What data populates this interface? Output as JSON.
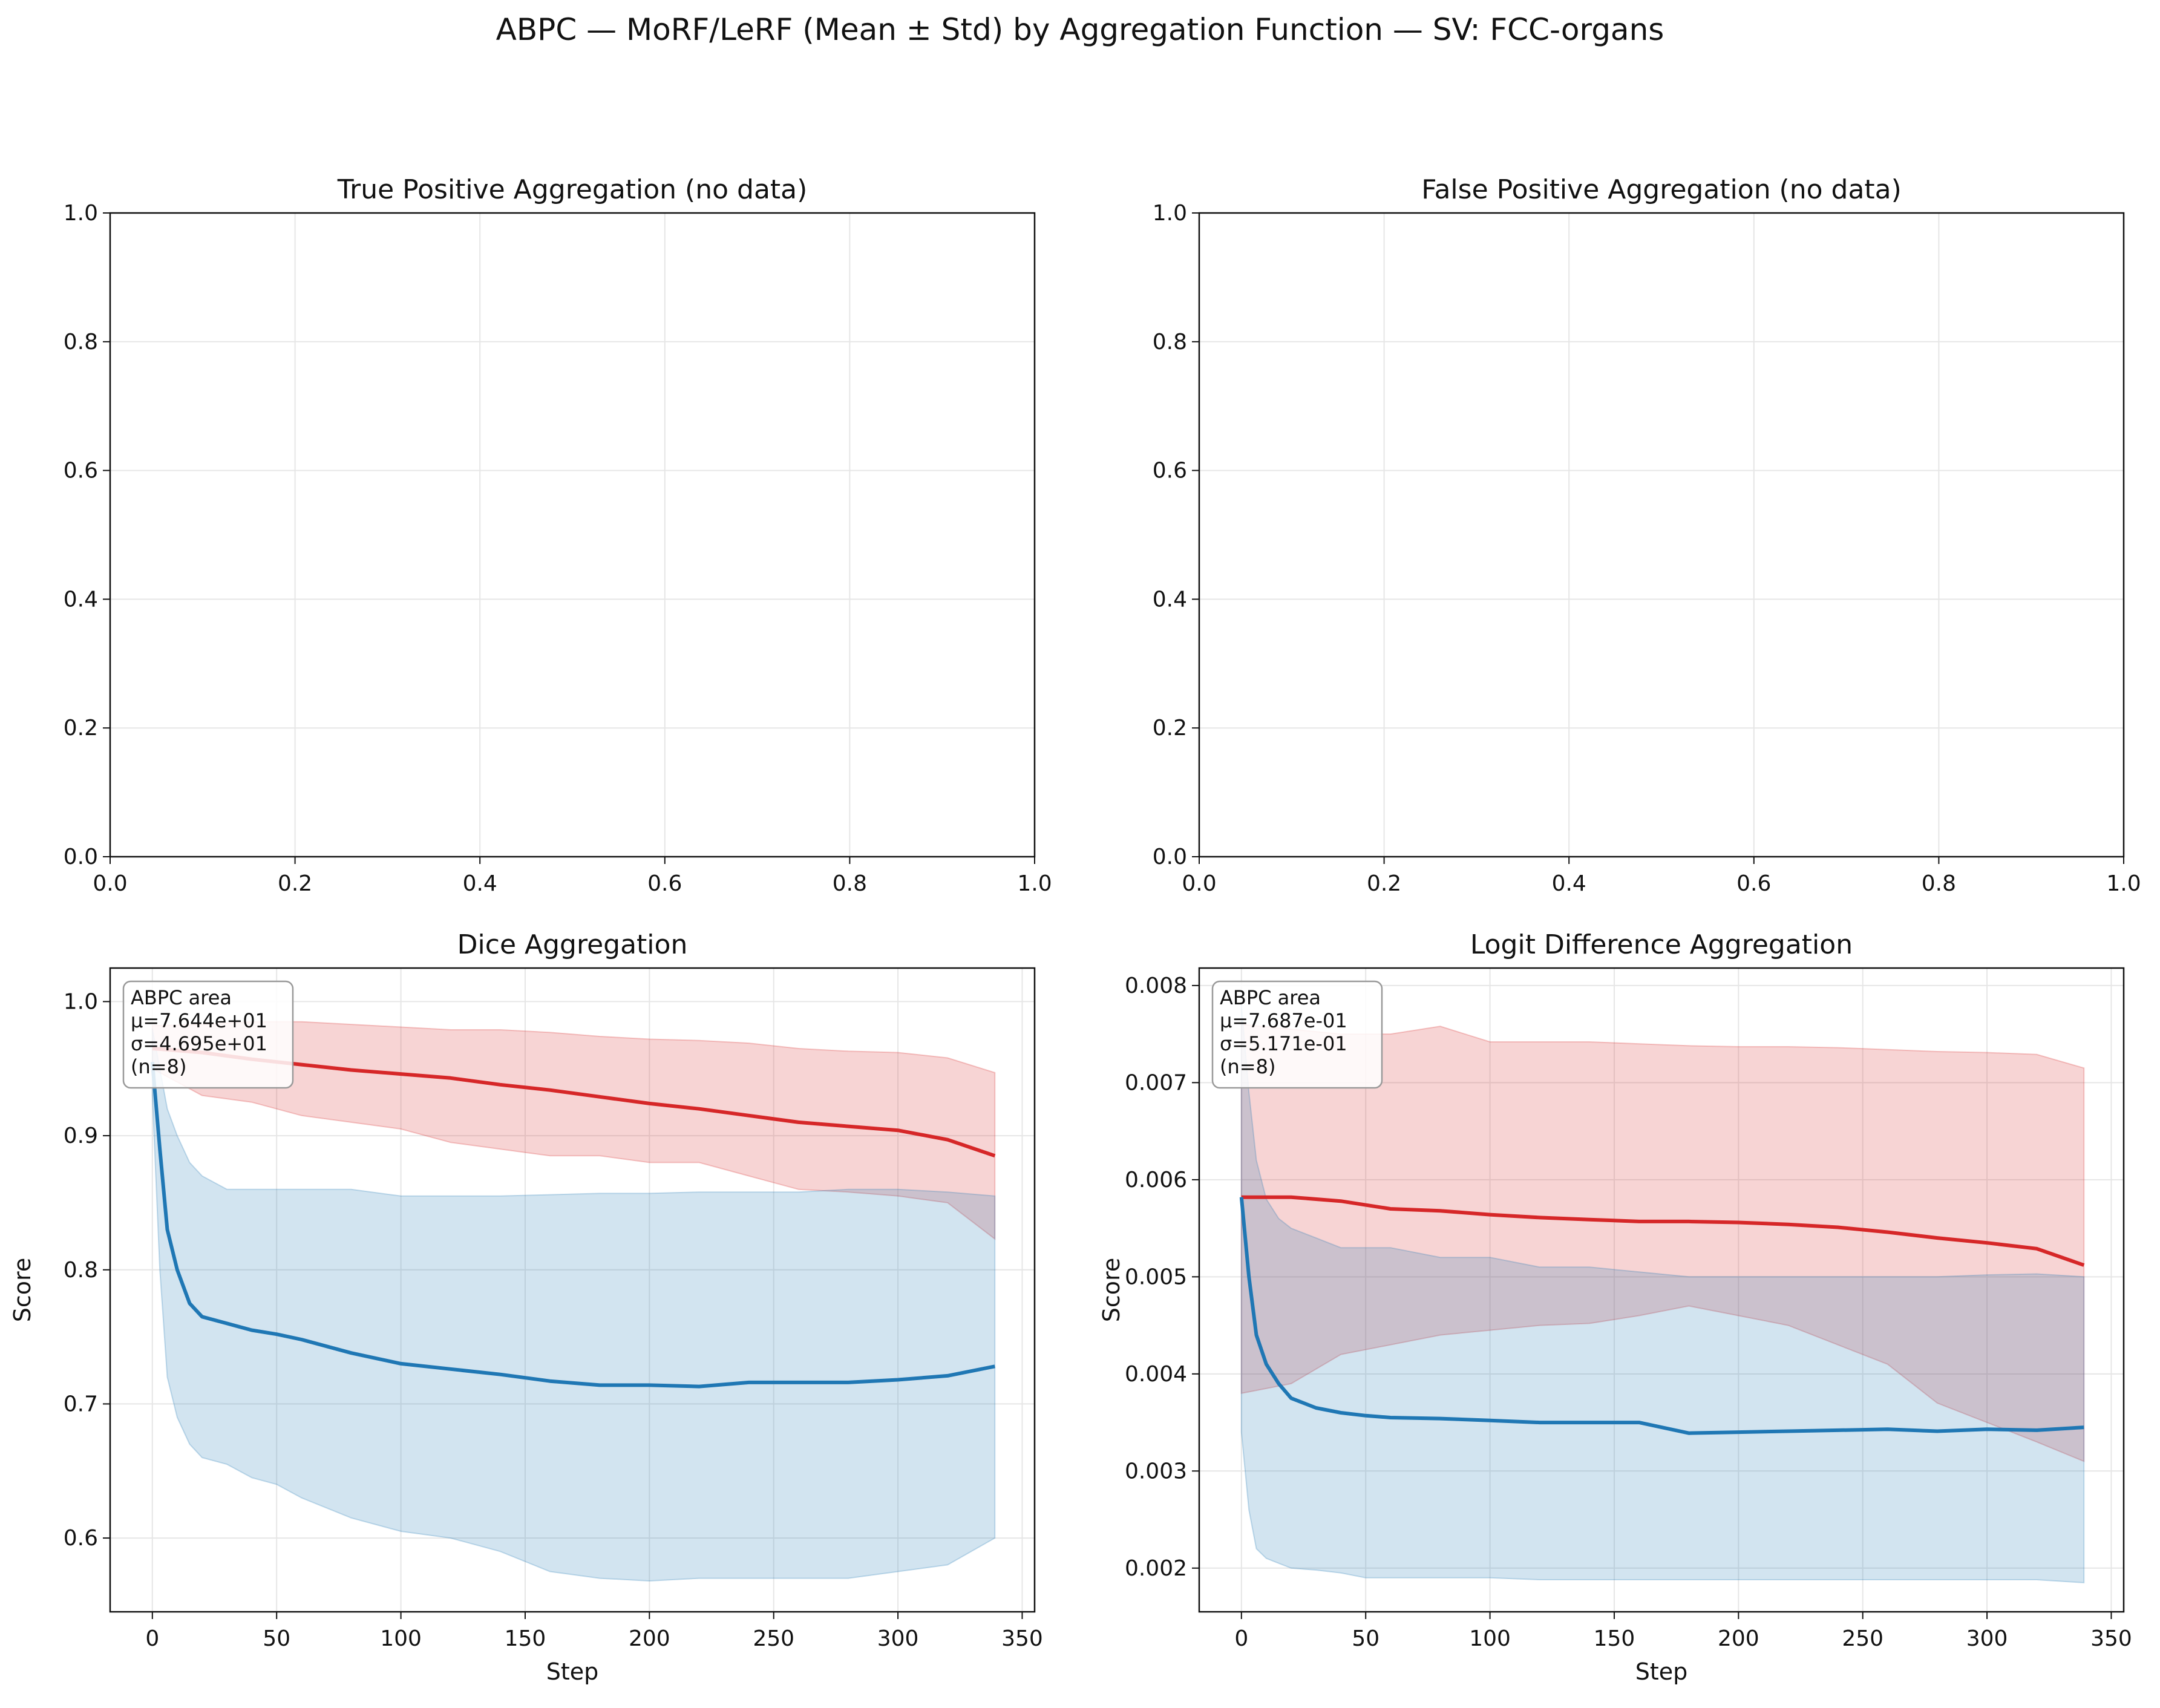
{
  "figure": {
    "title": "ABPC — MoRF/LeRF (Mean ± Std) by Aggregation Function — SV: FCC-organs"
  },
  "colors": {
    "morf": "#1f77b4",
    "lerf": "#d62728",
    "grid": "#e6e6e6"
  },
  "chart_data": [
    {
      "type": "line",
      "title": "True Positive Aggregation (no data)",
      "xlabel": "",
      "ylabel": "",
      "xlim": [
        0,
        1
      ],
      "ylim": [
        0,
        1
      ],
      "xticks": [
        "0.0",
        "0.2",
        "0.4",
        "0.6",
        "0.8",
        "1.0"
      ],
      "yticks": [
        "0.0",
        "0.2",
        "0.4",
        "0.6",
        "0.8",
        "1.0"
      ],
      "grid": true,
      "series": []
    },
    {
      "type": "line",
      "title": "False Positive Aggregation (no data)",
      "xlabel": "",
      "ylabel": "",
      "xlim": [
        0,
        1
      ],
      "ylim": [
        0,
        1
      ],
      "xticks": [
        "0.0",
        "0.2",
        "0.4",
        "0.6",
        "0.8",
        "1.0"
      ],
      "yticks": [
        "0.0",
        "0.2",
        "0.4",
        "0.6",
        "0.8",
        "1.0"
      ],
      "grid": true,
      "series": []
    },
    {
      "type": "area",
      "title": "Dice Aggregation",
      "xlabel": "Step",
      "ylabel": "Score",
      "xlim": [
        -17,
        355
      ],
      "ylim": [
        0.545,
        1.025
      ],
      "xticks": [
        "0",
        "50",
        "100",
        "150",
        "200",
        "250",
        "300",
        "350"
      ],
      "yticks": [
        "0.6",
        "0.7",
        "0.8",
        "0.9",
        "1.0"
      ],
      "grid": true,
      "annotation": [
        "ABPC area",
        "μ=7.644e+01",
        "σ=4.695e+01",
        "(n=8)"
      ],
      "series": [
        {
          "color": "#d62728",
          "x": [
            0,
            20,
            40,
            60,
            80,
            100,
            120,
            140,
            160,
            180,
            200,
            220,
            240,
            260,
            280,
            300,
            320,
            339
          ],
          "mean": [
            0.965,
            0.962,
            0.957,
            0.953,
            0.949,
            0.946,
            0.943,
            0.938,
            0.934,
            0.929,
            0.924,
            0.92,
            0.915,
            0.91,
            0.907,
            0.904,
            0.897,
            0.885
          ],
          "upper": [
            0.982,
            0.983,
            0.985,
            0.985,
            0.983,
            0.981,
            0.979,
            0.979,
            0.977,
            0.974,
            0.972,
            0.971,
            0.969,
            0.965,
            0.963,
            0.962,
            0.958,
            0.947
          ],
          "lower": [
            0.95,
            0.93,
            0.925,
            0.915,
            0.91,
            0.905,
            0.895,
            0.89,
            0.885,
            0.885,
            0.88,
            0.88,
            0.87,
            0.86,
            0.858,
            0.855,
            0.85,
            0.823
          ]
        },
        {
          "color": "#1f77b4",
          "x": [
            0,
            3,
            6,
            10,
            15,
            20,
            30,
            40,
            50,
            60,
            80,
            100,
            120,
            140,
            160,
            180,
            200,
            220,
            240,
            260,
            280,
            300,
            320,
            339
          ],
          "mean": [
            0.955,
            0.89,
            0.83,
            0.8,
            0.775,
            0.765,
            0.76,
            0.755,
            0.752,
            0.748,
            0.738,
            0.73,
            0.726,
            0.722,
            0.717,
            0.714,
            0.714,
            0.713,
            0.716,
            0.716,
            0.716,
            0.718,
            0.721,
            0.728
          ],
          "upper": [
            0.98,
            0.95,
            0.92,
            0.9,
            0.88,
            0.87,
            0.86,
            0.86,
            0.86,
            0.86,
            0.86,
            0.855,
            0.855,
            0.855,
            0.856,
            0.857,
            0.857,
            0.858,
            0.858,
            0.858,
            0.86,
            0.86,
            0.858,
            0.855
          ],
          "lower": [
            0.93,
            0.8,
            0.72,
            0.69,
            0.67,
            0.66,
            0.655,
            0.645,
            0.64,
            0.63,
            0.615,
            0.605,
            0.6,
            0.59,
            0.575,
            0.57,
            0.568,
            0.57,
            0.57,
            0.57,
            0.57,
            0.575,
            0.58,
            0.6
          ]
        }
      ]
    },
    {
      "type": "area",
      "title": "Logit Difference Aggregation",
      "xlabel": "Step",
      "ylabel": "Score",
      "xlim": [
        -17,
        355
      ],
      "ylim": [
        0.00155,
        0.00818
      ],
      "xticks": [
        "0",
        "50",
        "100",
        "150",
        "200",
        "250",
        "300",
        "350"
      ],
      "yticks": [
        "0.002",
        "0.003",
        "0.004",
        "0.005",
        "0.006",
        "0.007",
        "0.008"
      ],
      "grid": true,
      "annotation": [
        "ABPC area",
        "μ=7.687e-01",
        "σ=5.171e-01",
        "(n=8)"
      ],
      "series": [
        {
          "color": "#d62728",
          "x": [
            0,
            20,
            40,
            60,
            80,
            100,
            120,
            140,
            160,
            180,
            200,
            220,
            240,
            260,
            280,
            300,
            320,
            339
          ],
          "mean": [
            0.00582,
            0.00582,
            0.00578,
            0.0057,
            0.00568,
            0.00564,
            0.00561,
            0.00559,
            0.00557,
            0.00557,
            0.00556,
            0.00554,
            0.00551,
            0.00546,
            0.0054,
            0.00535,
            0.00529,
            0.00512
          ],
          "upper": [
            0.0076,
            0.00755,
            0.0075,
            0.0075,
            0.00758,
            0.00742,
            0.00742,
            0.00742,
            0.0074,
            0.00738,
            0.00737,
            0.00737,
            0.00736,
            0.00734,
            0.00732,
            0.00731,
            0.00729,
            0.00715
          ],
          "lower": [
            0.0038,
            0.0039,
            0.0042,
            0.0043,
            0.0044,
            0.00445,
            0.0045,
            0.00452,
            0.0046,
            0.0047,
            0.0046,
            0.0045,
            0.0043,
            0.0041,
            0.0037,
            0.0035,
            0.0033,
            0.0031
          ]
        },
        {
          "color": "#1f77b4",
          "x": [
            0,
            3,
            6,
            10,
            15,
            20,
            30,
            40,
            50,
            60,
            80,
            100,
            120,
            140,
            160,
            180,
            200,
            220,
            240,
            260,
            280,
            300,
            320,
            339
          ],
          "mean": [
            0.00582,
            0.005,
            0.0044,
            0.0041,
            0.0039,
            0.00375,
            0.00365,
            0.0036,
            0.00357,
            0.00355,
            0.00354,
            0.00352,
            0.0035,
            0.0035,
            0.0035,
            0.00339,
            0.0034,
            0.00341,
            0.00342,
            0.00343,
            0.00341,
            0.00343,
            0.00342,
            0.00345
          ],
          "upper": [
            0.0078,
            0.0069,
            0.0062,
            0.0058,
            0.0056,
            0.0055,
            0.0054,
            0.0053,
            0.0053,
            0.0053,
            0.0052,
            0.0052,
            0.0051,
            0.0051,
            0.00505,
            0.005,
            0.005,
            0.005,
            0.005,
            0.005,
            0.005,
            0.00502,
            0.00503,
            0.005
          ],
          "lower": [
            0.0034,
            0.0026,
            0.0022,
            0.0021,
            0.00205,
            0.002,
            0.00198,
            0.00195,
            0.0019,
            0.0019,
            0.0019,
            0.0019,
            0.00188,
            0.00188,
            0.00188,
            0.00188,
            0.00188,
            0.00188,
            0.00188,
            0.00188,
            0.00188,
            0.00188,
            0.00188,
            0.00185
          ]
        }
      ]
    }
  ]
}
